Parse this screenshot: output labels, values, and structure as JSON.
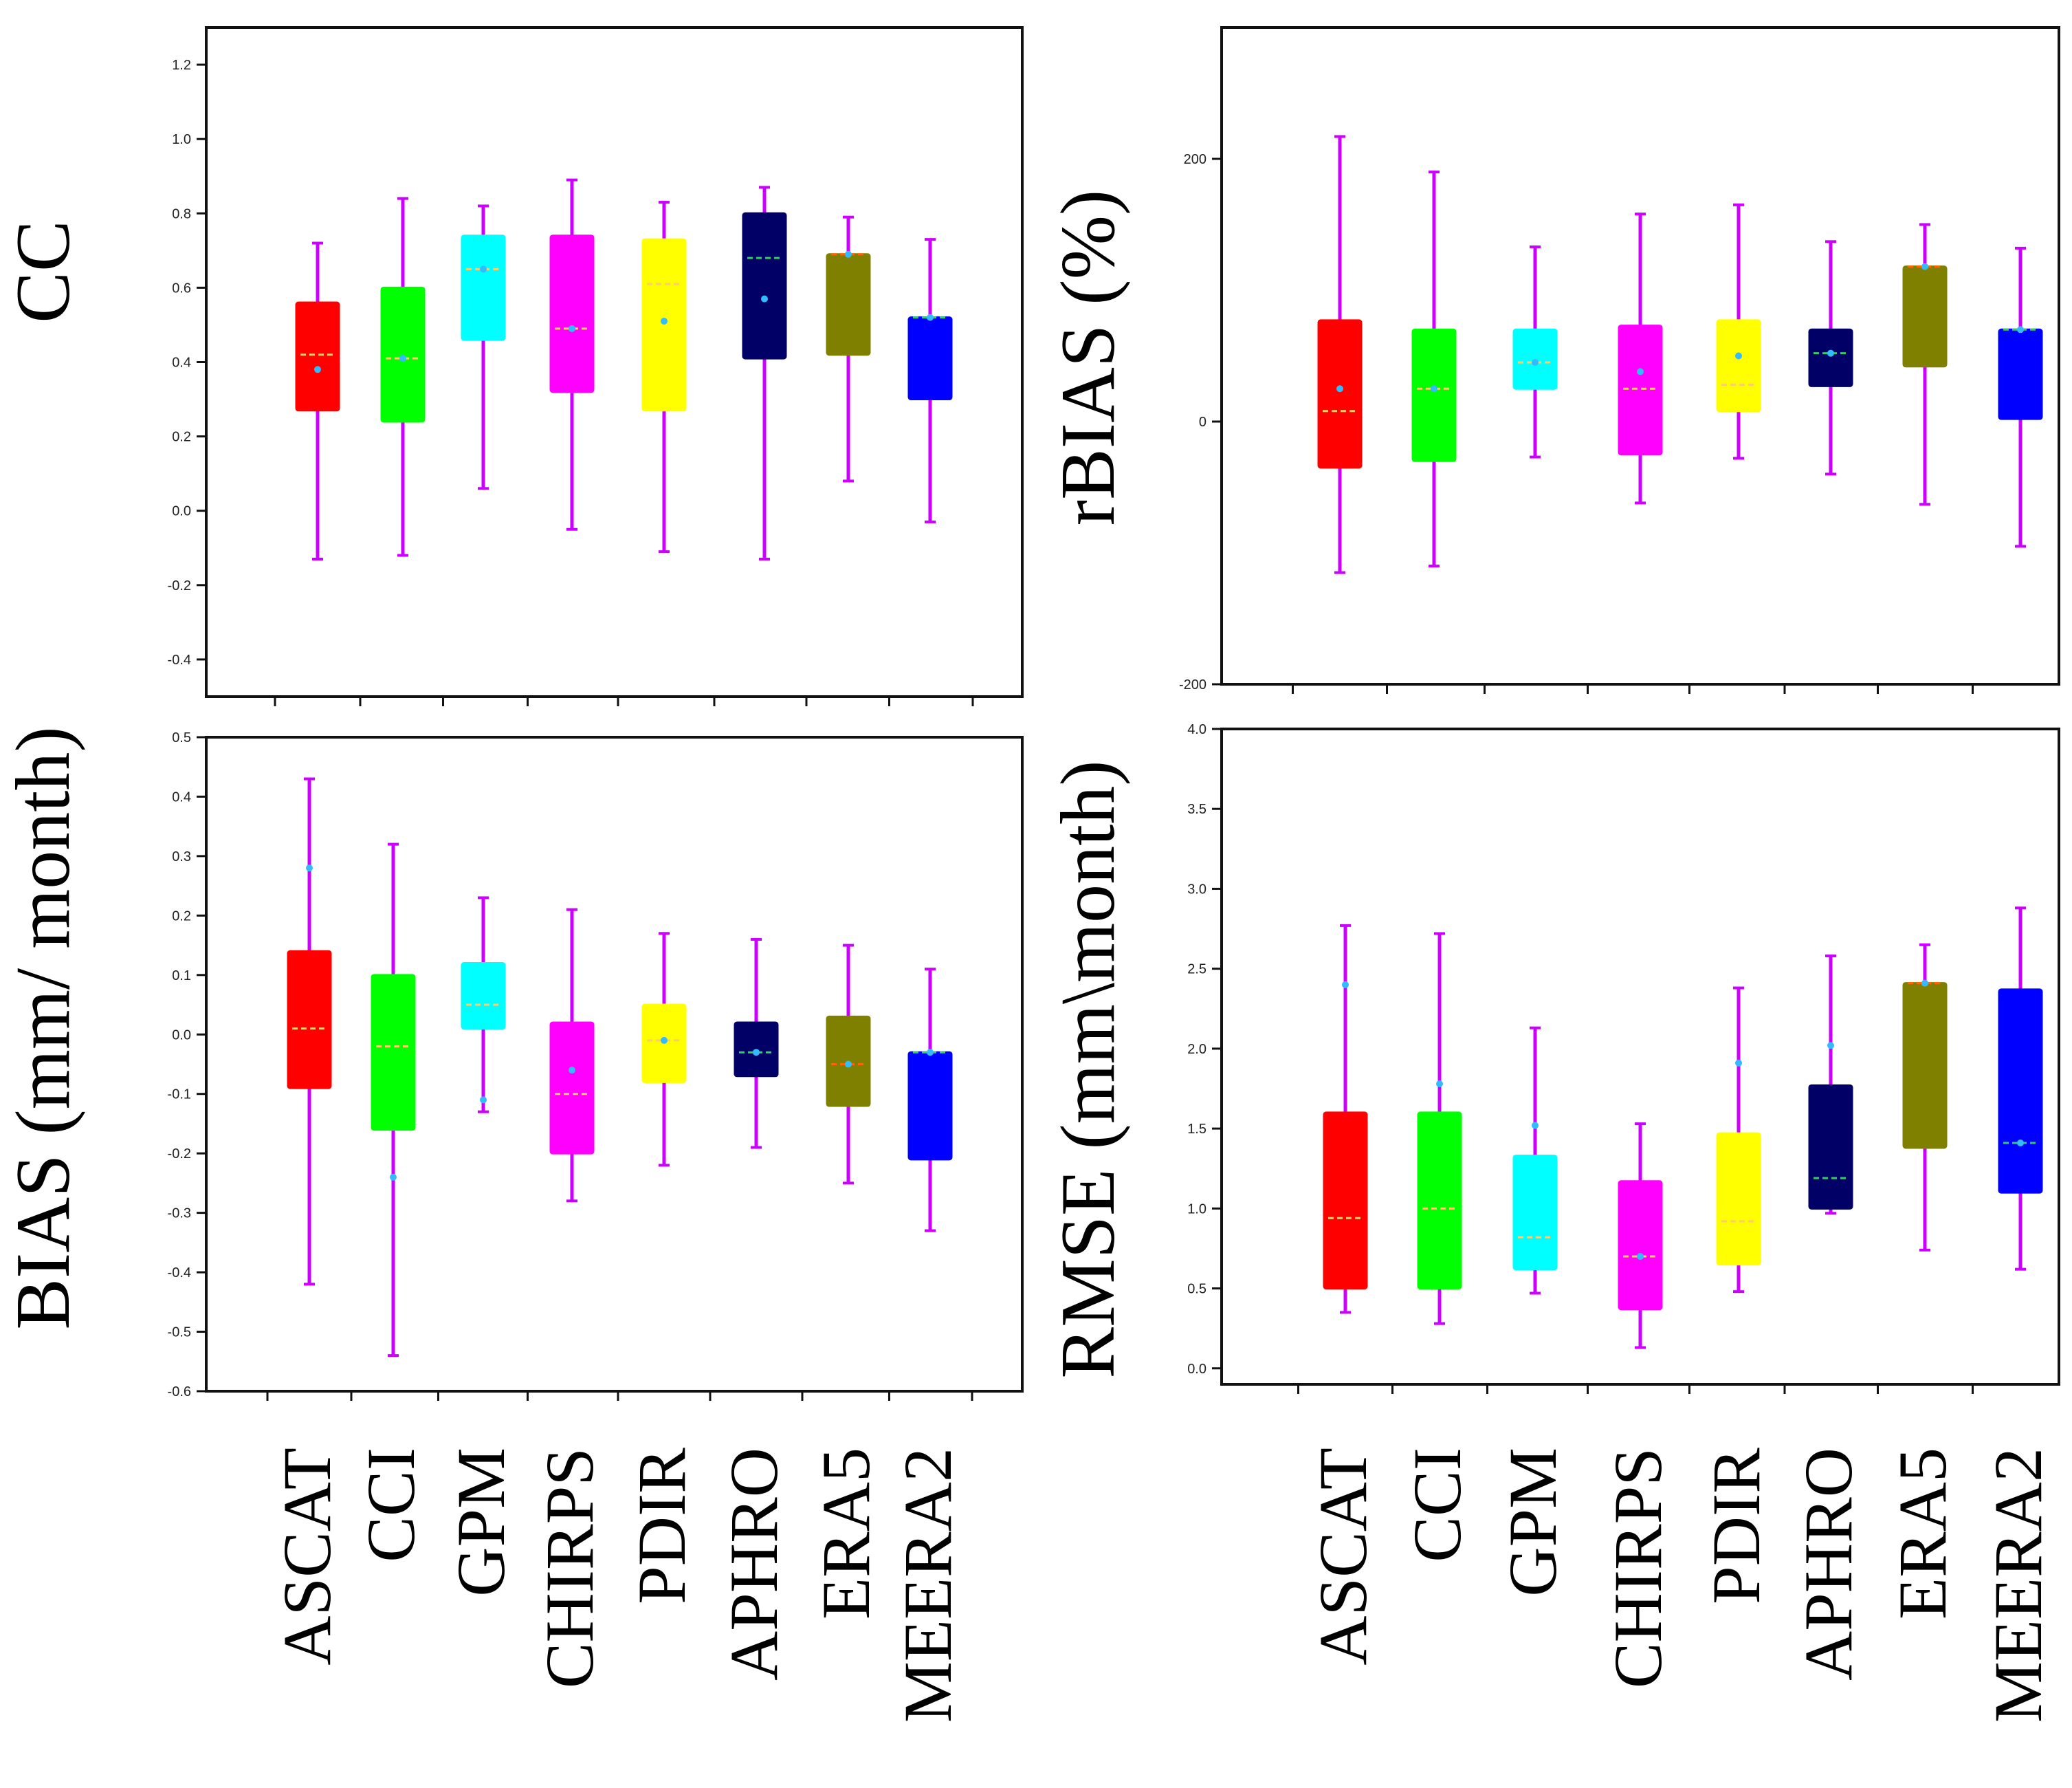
{
  "figure": {
    "categories": [
      "ASCAT",
      "CCI",
      "GPM",
      "CHIRPS",
      "PDIR",
      "APHRO",
      "ERA5",
      "MEERA2"
    ],
    "colors": {
      "ASCAT": "#ff0000",
      "CCI": "#00ff00",
      "GPM": "#00ffff",
      "CHIRPS": "#ff00ff",
      "PDIR": "#ffff00",
      "APHRO": "#000066",
      "ERA5": "#808000",
      "MEERA2": "#0000ff"
    },
    "whisker_color": "#cc00ff"
  },
  "chart_data": [
    {
      "type": "boxplot",
      "id": "cc",
      "ylabel": "CC",
      "ylim": [
        -0.5,
        1.3
      ],
      "yticks": [
        -0.4,
        -0.2,
        0.0,
        0.2,
        0.4,
        0.6,
        0.8,
        1.0,
        1.2
      ],
      "tick_labels": [
        "-0.4",
        "-0.2",
        "0.0",
        "0.2",
        "0.4",
        "0.6",
        "0.8",
        "1.0",
        "1.2"
      ],
      "boxes": [
        {
          "name": "ASCAT",
          "min": -0.13,
          "q1": 0.27,
          "median": 0.42,
          "mean": 0.38,
          "q3": 0.56,
          "max": 0.72
        },
        {
          "name": "CCI",
          "min": -0.12,
          "q1": 0.24,
          "median": 0.41,
          "mean": 0.41,
          "q3": 0.6,
          "max": 0.84
        },
        {
          "name": "GPM",
          "min": 0.06,
          "q1": 0.46,
          "median": 0.65,
          "mean": 0.65,
          "q3": 0.74,
          "max": 0.82
        },
        {
          "name": "CHIRPS",
          "min": -0.05,
          "q1": 0.32,
          "median": 0.49,
          "mean": 0.49,
          "q3": 0.74,
          "max": 0.89
        },
        {
          "name": "PDIR",
          "min": -0.11,
          "q1": 0.27,
          "median": 0.61,
          "mean": 0.51,
          "q3": 0.73,
          "max": 0.83
        },
        {
          "name": "APHRO",
          "min": -0.13,
          "q1": 0.41,
          "median": 0.68,
          "mean": 0.57,
          "q3": 0.8,
          "max": 0.87
        },
        {
          "name": "ERA5",
          "min": 0.08,
          "q1": 0.42,
          "median": 0.69,
          "mean": 0.69,
          "q3": 0.69,
          "max": 0.79
        },
        {
          "name": "MEERA2",
          "min": -0.03,
          "q1": 0.3,
          "median": 0.52,
          "mean": 0.52,
          "q3": 0.52,
          "max": 0.73
        }
      ]
    },
    {
      "type": "boxplot",
      "id": "rbias",
      "ylabel": "rBIAS (%)",
      "ylim": [
        -200,
        300
      ],
      "yticks": [
        -200,
        0,
        200
      ],
      "tick_labels": [
        "-200",
        "0",
        "200"
      ],
      "boxes": [
        {
          "name": "ASCAT",
          "min": -115,
          "q1": -35,
          "median": 8,
          "mean": 25,
          "q3": 77,
          "max": 217
        },
        {
          "name": "CCI",
          "min": -110,
          "q1": -30,
          "median": 25,
          "mean": 25,
          "q3": 70,
          "max": 190
        },
        {
          "name": "GPM",
          "min": -27,
          "q1": 25,
          "median": 45,
          "mean": 45,
          "q3": 70,
          "max": 133
        },
        {
          "name": "CHIRPS",
          "min": -62,
          "q1": -25,
          "median": 25,
          "mean": 38,
          "q3": 73,
          "max": 158
        },
        {
          "name": "PDIR",
          "min": -28,
          "q1": 8,
          "median": 28,
          "mean": 50,
          "q3": 77,
          "max": 165
        },
        {
          "name": "APHRO",
          "min": -40,
          "q1": 27,
          "median": 52,
          "mean": 52,
          "q3": 70,
          "max": 137
        },
        {
          "name": "ERA5",
          "min": -63,
          "q1": 42,
          "median": 118,
          "mean": 118,
          "q3": 118,
          "max": 150
        },
        {
          "name": "MEERA2",
          "min": -95,
          "q1": 2,
          "median": 70,
          "mean": 70,
          "q3": 70,
          "max": 132
        }
      ]
    },
    {
      "type": "boxplot",
      "id": "bias",
      "ylabel": "BIAS (mm/ month)",
      "ylim": [
        -0.6,
        0.5
      ],
      "yticks": [
        -0.6,
        -0.5,
        -0.4,
        -0.3,
        -0.2,
        -0.1,
        0.0,
        0.1,
        0.2,
        0.3,
        0.4,
        0.5
      ],
      "tick_labels": [
        "-0.6",
        "-0.5",
        "-0.4",
        "-0.3",
        "-0.2",
        "-0.1",
        "0.0",
        "0.1",
        "0.2",
        "0.3",
        "0.4",
        "0.5"
      ],
      "boxes": [
        {
          "name": "ASCAT",
          "min": -0.42,
          "q1": -0.09,
          "median": 0.01,
          "mean": 0.28,
          "q3": 0.14,
          "max": 0.43
        },
        {
          "name": "CCI",
          "min": -0.54,
          "q1": -0.16,
          "median": -0.02,
          "mean": -0.24,
          "q3": 0.1,
          "max": 0.32
        },
        {
          "name": "GPM",
          "min": -0.13,
          "q1": 0.01,
          "median": 0.05,
          "mean": -0.11,
          "q3": 0.12,
          "max": 0.23
        },
        {
          "name": "CHIRPS",
          "min": -0.28,
          "q1": -0.2,
          "median": -0.1,
          "mean": -0.06,
          "q3": 0.02,
          "max": 0.21
        },
        {
          "name": "PDIR",
          "min": -0.22,
          "q1": -0.08,
          "median": -0.01,
          "mean": -0.01,
          "q3": 0.05,
          "max": 0.17
        },
        {
          "name": "APHRO",
          "min": -0.19,
          "q1": -0.07,
          "median": -0.03,
          "mean": -0.03,
          "q3": 0.02,
          "max": 0.16
        },
        {
          "name": "ERA5",
          "min": -0.25,
          "q1": -0.12,
          "median": -0.05,
          "mean": -0.05,
          "q3": 0.03,
          "max": 0.15
        },
        {
          "name": "MEERA2",
          "min": -0.33,
          "q1": -0.21,
          "median": -0.03,
          "mean": -0.03,
          "q3": -0.03,
          "max": 0.11
        }
      ]
    },
    {
      "type": "boxplot",
      "id": "rmse",
      "ylabel": "RMSE (mm\\month)",
      "ylim": [
        -0.1,
        4.0
      ],
      "yticks": [
        0.0,
        0.5,
        1.0,
        1.5,
        2.0,
        2.5,
        3.0,
        3.5,
        4.0
      ],
      "tick_labels": [
        "0.0",
        "0.5",
        "1.0",
        "1.5",
        "2.0",
        "2.5",
        "3.0",
        "3.5",
        "4.0"
      ],
      "boxes": [
        {
          "name": "ASCAT",
          "min": 0.35,
          "q1": 0.5,
          "median": 0.94,
          "mean": 2.4,
          "q3": 1.6,
          "max": 2.77
        },
        {
          "name": "CCI",
          "min": 0.28,
          "q1": 0.5,
          "median": 1.0,
          "mean": 1.78,
          "q3": 1.6,
          "max": 2.72
        },
        {
          "name": "GPM",
          "min": 0.47,
          "q1": 0.62,
          "median": 0.82,
          "mean": 1.52,
          "q3": 1.33,
          "max": 2.13
        },
        {
          "name": "CHIRPS",
          "min": 0.13,
          "q1": 0.37,
          "median": 0.7,
          "mean": 0.7,
          "q3": 1.17,
          "max": 1.53
        },
        {
          "name": "PDIR",
          "min": 0.48,
          "q1": 0.65,
          "median": 0.92,
          "mean": 1.91,
          "q3": 1.47,
          "max": 2.38
        },
        {
          "name": "APHRO",
          "min": 0.97,
          "q1": 1.0,
          "median": 1.19,
          "mean": 2.02,
          "q3": 1.77,
          "max": 2.58
        },
        {
          "name": "ERA5",
          "min": 0.74,
          "q1": 1.38,
          "median": 2.41,
          "mean": 2.41,
          "q3": 2.41,
          "max": 2.65
        },
        {
          "name": "MEERA2",
          "min": 0.62,
          "q1": 1.1,
          "median": 1.41,
          "mean": 1.41,
          "q3": 2.37,
          "max": 2.88
        }
      ]
    }
  ]
}
